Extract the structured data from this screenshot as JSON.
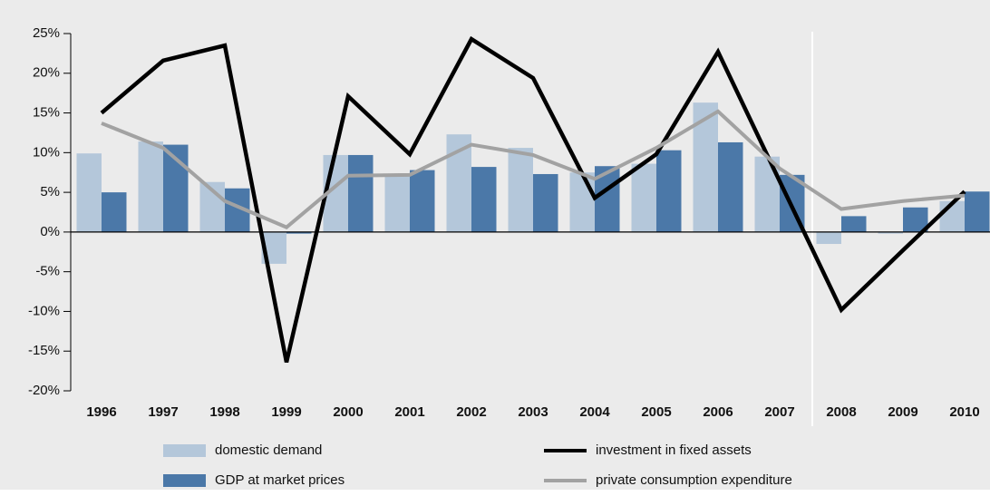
{
  "chart_data": {
    "type": "bar",
    "categories": [
      "1996",
      "1997",
      "1998",
      "1999",
      "2000",
      "2001",
      "2002",
      "2003",
      "2004",
      "2005",
      "2006",
      "2007",
      "2008",
      "2009",
      "2010"
    ],
    "series": [
      {
        "name": "domestic demand",
        "type": "bar",
        "color": "#b4c7da",
        "values": [
          9.9,
          11.4,
          6.3,
          -4,
          9.7,
          7.2,
          12.3,
          10.6,
          7.5,
          8.6,
          16.3,
          9.5,
          -1.5,
          -0.2,
          3.9
        ]
      },
      {
        "name": "GDP at market prices",
        "type": "bar",
        "color": "#4b78a8",
        "values": [
          5.0,
          11.0,
          5.5,
          -0.2,
          9.7,
          7.8,
          8.2,
          7.3,
          8.3,
          10.3,
          11.3,
          7.2,
          2.0,
          3.1,
          5.1
        ]
      },
      {
        "name": "investment in fixed assets",
        "type": "line",
        "color": "#000000",
        "values": [
          15.0,
          21.6,
          23.5,
          -16.4,
          17.1,
          9.8,
          24.3,
          19.4,
          4.3,
          9.8,
          22.7,
          6.4,
          -9.8,
          -2.3,
          5.1
        ]
      },
      {
        "name": "private consumption expenditure",
        "type": "line",
        "color": "#a2a2a2",
        "values": [
          13.7,
          10.6,
          3.9,
          0.6,
          7.1,
          7.2,
          11.0,
          9.7,
          6.7,
          10.6,
          15.2,
          8.0,
          2.9,
          3.9,
          4.6
        ]
      }
    ],
    "ylim": [
      -21,
      26
    ],
    "yticks": [
      {
        "value": -20,
        "label": "-20%"
      },
      {
        "value": -15,
        "label": "-15%"
      },
      {
        "value": -10,
        "label": "-10%"
      },
      {
        "value": -5,
        "label": "-5%"
      },
      {
        "value": 0,
        "label": "0%"
      },
      {
        "value": 5,
        "label": "5%"
      },
      {
        "value": 10,
        "label": "10%"
      },
      {
        "value": 15,
        "label": "15%"
      },
      {
        "value": 20,
        "label": "20%"
      },
      {
        "value": 25,
        "label": "25%"
      }
    ],
    "legend": "bottom"
  }
}
